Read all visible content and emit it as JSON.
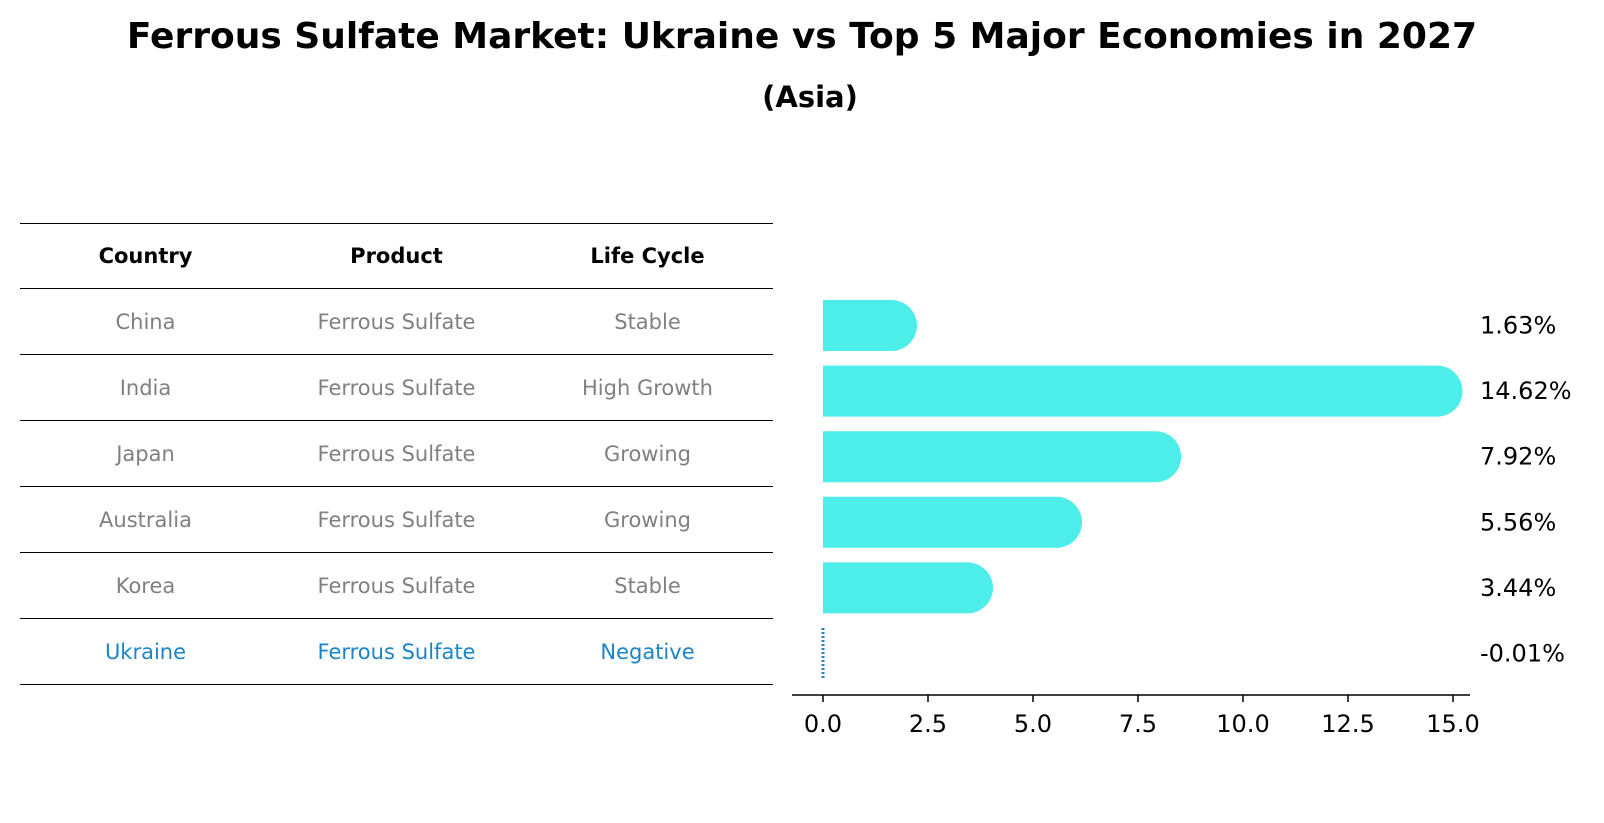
{
  "title": "Ferrous Sulfate Market: Ukraine vs Top 5 Major Economies in 2027",
  "subtitle": "(Asia)",
  "table": {
    "headers": [
      "Country",
      "Product",
      "Life Cycle"
    ],
    "rows": [
      {
        "country": "China",
        "product": "Ferrous Sulfate",
        "life_cycle": "Stable"
      },
      {
        "country": "India",
        "product": "Ferrous Sulfate",
        "life_cycle": "High Growth"
      },
      {
        "country": "Japan",
        "product": "Ferrous Sulfate",
        "life_cycle": "Growing"
      },
      {
        "country": "Australia",
        "product": "Ferrous Sulfate",
        "life_cycle": "Growing"
      },
      {
        "country": "Korea",
        "product": "Ferrous Sulfate",
        "life_cycle": "Stable"
      },
      {
        "country": "Ukraine",
        "product": "Ferrous Sulfate",
        "life_cycle": "Negative"
      }
    ]
  },
  "chart_data": {
    "type": "bar",
    "orientation": "horizontal",
    "categories": [
      "China",
      "India",
      "Japan",
      "Australia",
      "Korea",
      "Ukraine"
    ],
    "values": [
      1.63,
      14.62,
      7.92,
      5.56,
      3.44,
      -0.01
    ],
    "value_labels": [
      "1.63%",
      "14.62%",
      "7.92%",
      "5.56%",
      "3.44%",
      "-0.01%"
    ],
    "xlim": [
      -0.75,
      15.2
    ],
    "xticks": [
      0.0,
      2.5,
      5.0,
      7.5,
      10.0,
      12.5,
      15.0
    ],
    "xtick_labels": [
      "0.0",
      "2.5",
      "5.0",
      "7.5",
      "10.0",
      "12.5",
      "15.0"
    ],
    "xlabel": "",
    "ylabel": "",
    "colors": {
      "bar": "#4deeea",
      "highlight": "#1a85c8",
      "axis": "#000000",
      "label": "#000000"
    }
  }
}
